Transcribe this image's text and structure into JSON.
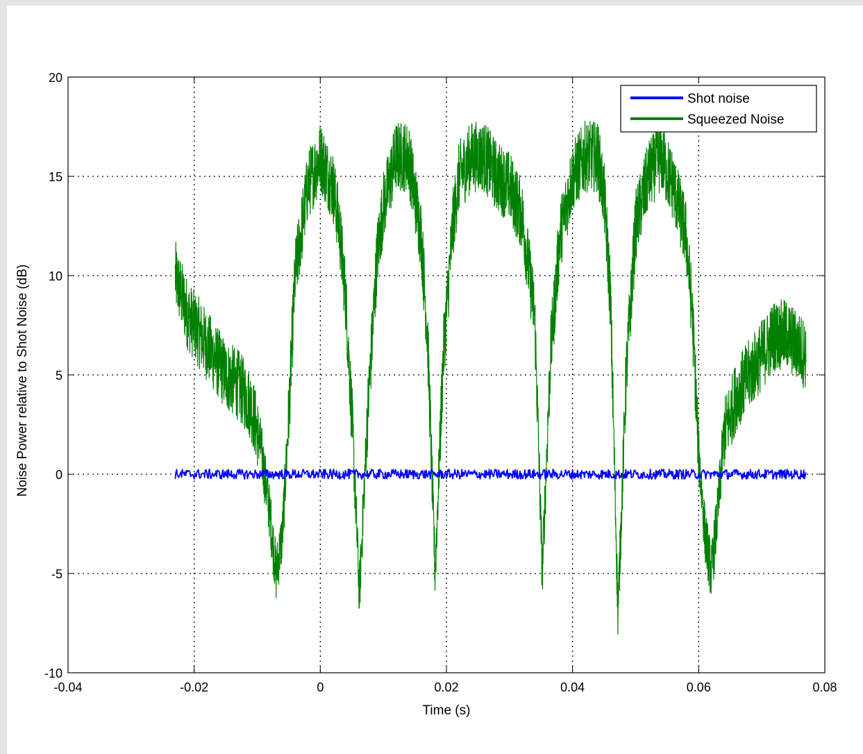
{
  "chart_data": {
    "type": "line",
    "xlabel": "Time (s)",
    "ylabel": "Noise Power relative to Shot Noise (dB)",
    "xlim": [
      -0.04,
      0.08
    ],
    "ylim": [
      -10,
      20
    ],
    "xticks": [
      -0.04,
      -0.02,
      0,
      0.02,
      0.04,
      0.06,
      0.08
    ],
    "xtick_labels": [
      "-0.04",
      "-0.02",
      "0",
      "0.02",
      "0.04",
      "0.06",
      "0.08"
    ],
    "yticks": [
      -10,
      -5,
      0,
      5,
      10,
      15,
      20
    ],
    "ytick_labels": [
      "-10",
      "-5",
      "0",
      "5",
      "10",
      "15",
      "20"
    ],
    "grid": true,
    "legend_position": "top-right",
    "series": [
      {
        "name": "Shot noise",
        "color": "#0000ff",
        "noise_amplitude": 0.25,
        "x": [
          -0.023,
          0.077
        ],
        "y": [
          0,
          0
        ]
      },
      {
        "name": "Squeezed Noise",
        "color": "#008000",
        "noise_amplitude": 1.8,
        "x": [
          -0.023,
          -0.021,
          -0.019,
          -0.017,
          -0.015,
          -0.013,
          -0.011,
          -0.0095,
          -0.008,
          -0.007,
          -0.006,
          -0.005,
          -0.004,
          -0.002,
          0.0,
          0.002,
          0.003,
          0.004,
          0.005,
          0.0062,
          0.0075,
          0.009,
          0.01,
          0.012,
          0.014,
          0.016,
          0.017,
          0.0182,
          0.0195,
          0.021,
          0.022,
          0.024,
          0.026,
          0.028,
          0.03,
          0.032,
          0.034,
          0.0352,
          0.0365,
          0.038,
          0.04,
          0.042,
          0.044,
          0.045,
          0.046,
          0.0472,
          0.0485,
          0.05,
          0.052,
          0.054,
          0.056,
          0.058,
          0.059,
          0.06,
          0.061,
          0.062,
          0.063,
          0.064,
          0.066,
          0.068,
          0.07,
          0.072,
          0.074,
          0.077
        ],
        "y": [
          10,
          8,
          7,
          6,
          5,
          4.5,
          3.5,
          1.5,
          -2,
          -5,
          -3,
          3,
          10,
          14.5,
          16,
          14.5,
          12.5,
          9,
          3,
          -6,
          3,
          11,
          13.5,
          16,
          16,
          12,
          7,
          -5,
          6,
          12.5,
          15,
          16,
          16,
          15,
          14.5,
          13,
          8,
          -5,
          6,
          12,
          15,
          16,
          16,
          14,
          9,
          -7,
          5,
          12.5,
          15,
          16,
          14.5,
          12,
          8,
          1,
          -3,
          -5,
          -2,
          2,
          4,
          5,
          6,
          7,
          7,
          6
        ]
      }
    ]
  }
}
